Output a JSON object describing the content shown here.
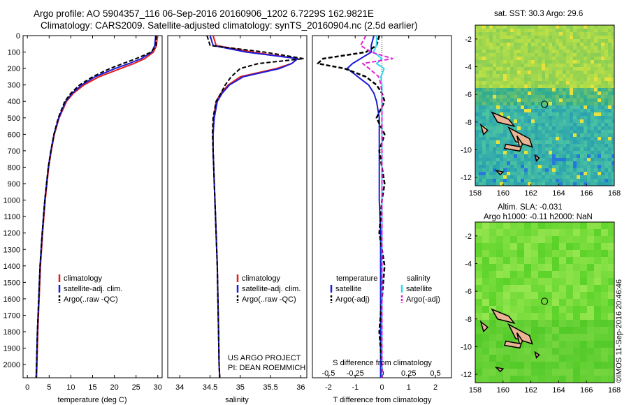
{
  "header": {
    "title_line1": "Argo profile: AO 5904357_116 06-Sep-2016 20160906_1202 6.7229S 162.9821E",
    "title_line2": "Climatology: CARS2009. Satellite-adjusted climatology: synTS_20160904.nc (2.5d earlier)"
  },
  "footer": {
    "project_line1": "US ARGO PROJECT",
    "project_line2": "PI: DEAN ROEMMICH",
    "imos_stamp": "©IMOS 11-Sep-2016 20:46:46"
  },
  "colors": {
    "climatology": "#e21d1d",
    "satellite_adj": "#1c1cd9",
    "argo": "#000000",
    "salinity_satellite": "#33d6ee",
    "salinity_argo": "#e020d8"
  },
  "chart_data": [
    {
      "type": "line",
      "panel": "temperature",
      "xlabel": "temperature (deg C)",
      "ylabel": "",
      "xlim": [
        -1,
        31
      ],
      "ylim": [
        2080,
        0
      ],
      "xticks": [
        0,
        5,
        10,
        15,
        20,
        25,
        30
      ],
      "yticks": [
        0,
        100,
        200,
        300,
        400,
        500,
        600,
        700,
        800,
        900,
        1000,
        1100,
        1200,
        1300,
        1400,
        1500,
        1600,
        1700,
        1800,
        1900,
        2000
      ],
      "legend": [
        "climatology",
        "satellite-adj. clim.",
        "Argo(..raw -QC)"
      ],
      "depth": [
        0,
        60,
        100,
        140,
        170,
        200,
        250,
        300,
        350,
        400,
        500,
        600,
        700,
        800,
        900,
        1000,
        1200,
        1400,
        1600,
        1800,
        2000,
        2080
      ],
      "series": [
        {
          "name": "climatology",
          "values": [
            29.9,
            29.7,
            29.0,
            27.0,
            24.5,
            21.5,
            16.5,
            13.0,
            10.6,
            9.0,
            7.3,
            6.2,
            5.5,
            4.9,
            4.5,
            4.1,
            3.5,
            3.0,
            2.7,
            2.4,
            2.2,
            2.1
          ]
        },
        {
          "name": "satellite-adj. clim.",
          "values": [
            29.5,
            29.3,
            28.6,
            26.2,
            23.4,
            20.2,
            15.6,
            12.5,
            10.3,
            8.8,
            7.2,
            6.1,
            5.4,
            4.8,
            4.4,
            4.0,
            3.4,
            2.9,
            2.6,
            2.3,
            2.1,
            2.0
          ]
        },
        {
          "name": "Argo(..raw -QC)",
          "values": [
            29.6,
            29.6,
            28.5,
            25.0,
            22.0,
            19.0,
            15.0,
            12.0,
            10.0,
            8.6,
            7.1,
            6.1,
            5.4,
            4.8,
            4.4,
            4.0,
            3.4,
            2.9,
            2.6,
            2.3,
            2.1,
            2.0
          ]
        }
      ]
    },
    {
      "type": "line",
      "panel": "salinity",
      "xlabel": "salinity",
      "ylabel": "",
      "xlim": [
        33.8,
        36.1
      ],
      "ylim": [
        2080,
        0
      ],
      "xticks": [
        34,
        34.5,
        35,
        35.5,
        36
      ],
      "legend": [
        "climatology",
        "satellite-adj. clim.",
        "Argo(..raw -QC)"
      ],
      "depth": [
        0,
        60,
        100,
        140,
        170,
        200,
        250,
        300,
        350,
        400,
        500,
        600,
        700,
        800,
        900,
        1000,
        1200,
        1400,
        1600,
        1800,
        2000,
        2080
      ],
      "series": [
        {
          "name": "climatology",
          "values": [
            34.55,
            34.6,
            35.2,
            35.95,
            35.85,
            35.6,
            35.0,
            34.8,
            34.68,
            34.6,
            34.56,
            34.55,
            34.55,
            34.56,
            34.57,
            34.58,
            34.6,
            34.62,
            34.63,
            34.64,
            34.65,
            34.66
          ]
        },
        {
          "name": "satellite-adj. clim.",
          "values": [
            34.5,
            34.55,
            35.1,
            35.95,
            35.85,
            35.65,
            35.05,
            34.82,
            34.7,
            34.62,
            34.57,
            34.55,
            34.55,
            34.56,
            34.57,
            34.58,
            34.6,
            34.62,
            34.63,
            34.64,
            34.65,
            34.66
          ]
        },
        {
          "name": "Argo(..raw -QC)",
          "values": [
            34.45,
            34.5,
            35.4,
            36.05,
            35.3,
            35.0,
            34.85,
            34.75,
            34.68,
            34.6,
            34.55,
            34.54,
            34.55,
            34.56,
            34.57,
            34.58,
            34.6,
            34.62,
            34.63,
            34.64,
            34.65,
            34.66
          ]
        }
      ]
    },
    {
      "type": "line",
      "panel": "differences",
      "xlabel": "T difference from climatology",
      "xlabel_top": "S difference from climatology",
      "ylabel": "",
      "xlim": [
        -2.6,
        2.6
      ],
      "ylim": [
        2080,
        0
      ],
      "xticks": [
        -2,
        -1,
        0,
        1,
        2
      ],
      "xticks_top": [
        -0.5,
        -0.25,
        0,
        0.25,
        0.5
      ],
      "legend_titles": [
        "temperature",
        "salinity"
      ],
      "legend": [
        "satellite",
        "Argo(-adj)",
        "satellite",
        "Argo(-adj)"
      ],
      "depth": [
        0,
        60,
        100,
        140,
        170,
        200,
        250,
        300,
        350,
        400,
        500,
        600,
        700,
        800,
        900,
        1000,
        1200,
        1400,
        1600,
        1800,
        2000,
        2080
      ],
      "series": [
        {
          "name": "temperature satellite",
          "values": [
            -0.3,
            -0.4,
            -0.4,
            -0.8,
            -1.1,
            -1.3,
            -0.9,
            -0.5,
            -0.3,
            -0.2,
            -0.1,
            -0.1,
            -0.1,
            -0.1,
            -0.1,
            -0.1,
            -0.05,
            -0.05,
            -0.05,
            -0.05,
            -0.05,
            -0.05
          ]
        },
        {
          "name": "temperature Argo(-adj)",
          "values": [
            -0.1,
            -0.2,
            -0.6,
            -2.2,
            -2.4,
            -1.4,
            -0.6,
            -0.2,
            0.0,
            0.1,
            -0.2,
            0.1,
            -0.1,
            0.0,
            0.1,
            0.0,
            -0.1,
            0.1,
            0.0,
            -0.1,
            0.0,
            0.0
          ]
        },
        {
          "name": "salinity satellite",
          "values": [
            -0.05,
            -0.05,
            -0.08,
            0.0,
            -0.05,
            0.02,
            -0.01,
            0.0,
            0.0,
            0.0,
            0.0,
            0.0,
            0.0,
            0.0,
            0.0,
            0.0,
            0.0,
            0.0,
            0.0,
            0.0,
            0.0,
            0.0
          ]
        },
        {
          "name": "salinity Argo(-adj)",
          "values": [
            -0.15,
            -0.2,
            -0.1,
            0.1,
            -0.18,
            -0.12,
            -0.03,
            -0.01,
            0.0,
            0.0,
            0.0,
            0.0,
            0.0,
            0.0,
            0.0,
            0.0,
            0.0,
            0.0,
            0.0,
            0.0,
            0.0,
            0.0
          ]
        }
      ]
    },
    {
      "type": "heatmap",
      "panel": "sst_map",
      "title": "sat. SST: 30.3 Argo: 29.6",
      "xlim": [
        158,
        168
      ],
      "ylim": [
        -12.6,
        -1
      ],
      "xticks": [
        158,
        160,
        162,
        164,
        166,
        168
      ],
      "yticks": [
        -2,
        -4,
        -6,
        -8,
        -10,
        -12
      ],
      "argo_position": [
        162.98,
        -6.72
      ]
    },
    {
      "type": "heatmap",
      "panel": "sla_map",
      "title_line1": "Altim. SLA: -0.031",
      "title_line2": "Argo h1000: -0.11 h2000: NaN",
      "xlim": [
        158,
        168
      ],
      "ylim": [
        -12.6,
        -1
      ],
      "xticks": [
        158,
        160,
        162,
        164,
        166,
        168
      ],
      "yticks": [
        -2,
        -4,
        -6,
        -8,
        -10,
        -12
      ],
      "argo_position": [
        162.98,
        -6.72
      ]
    }
  ]
}
